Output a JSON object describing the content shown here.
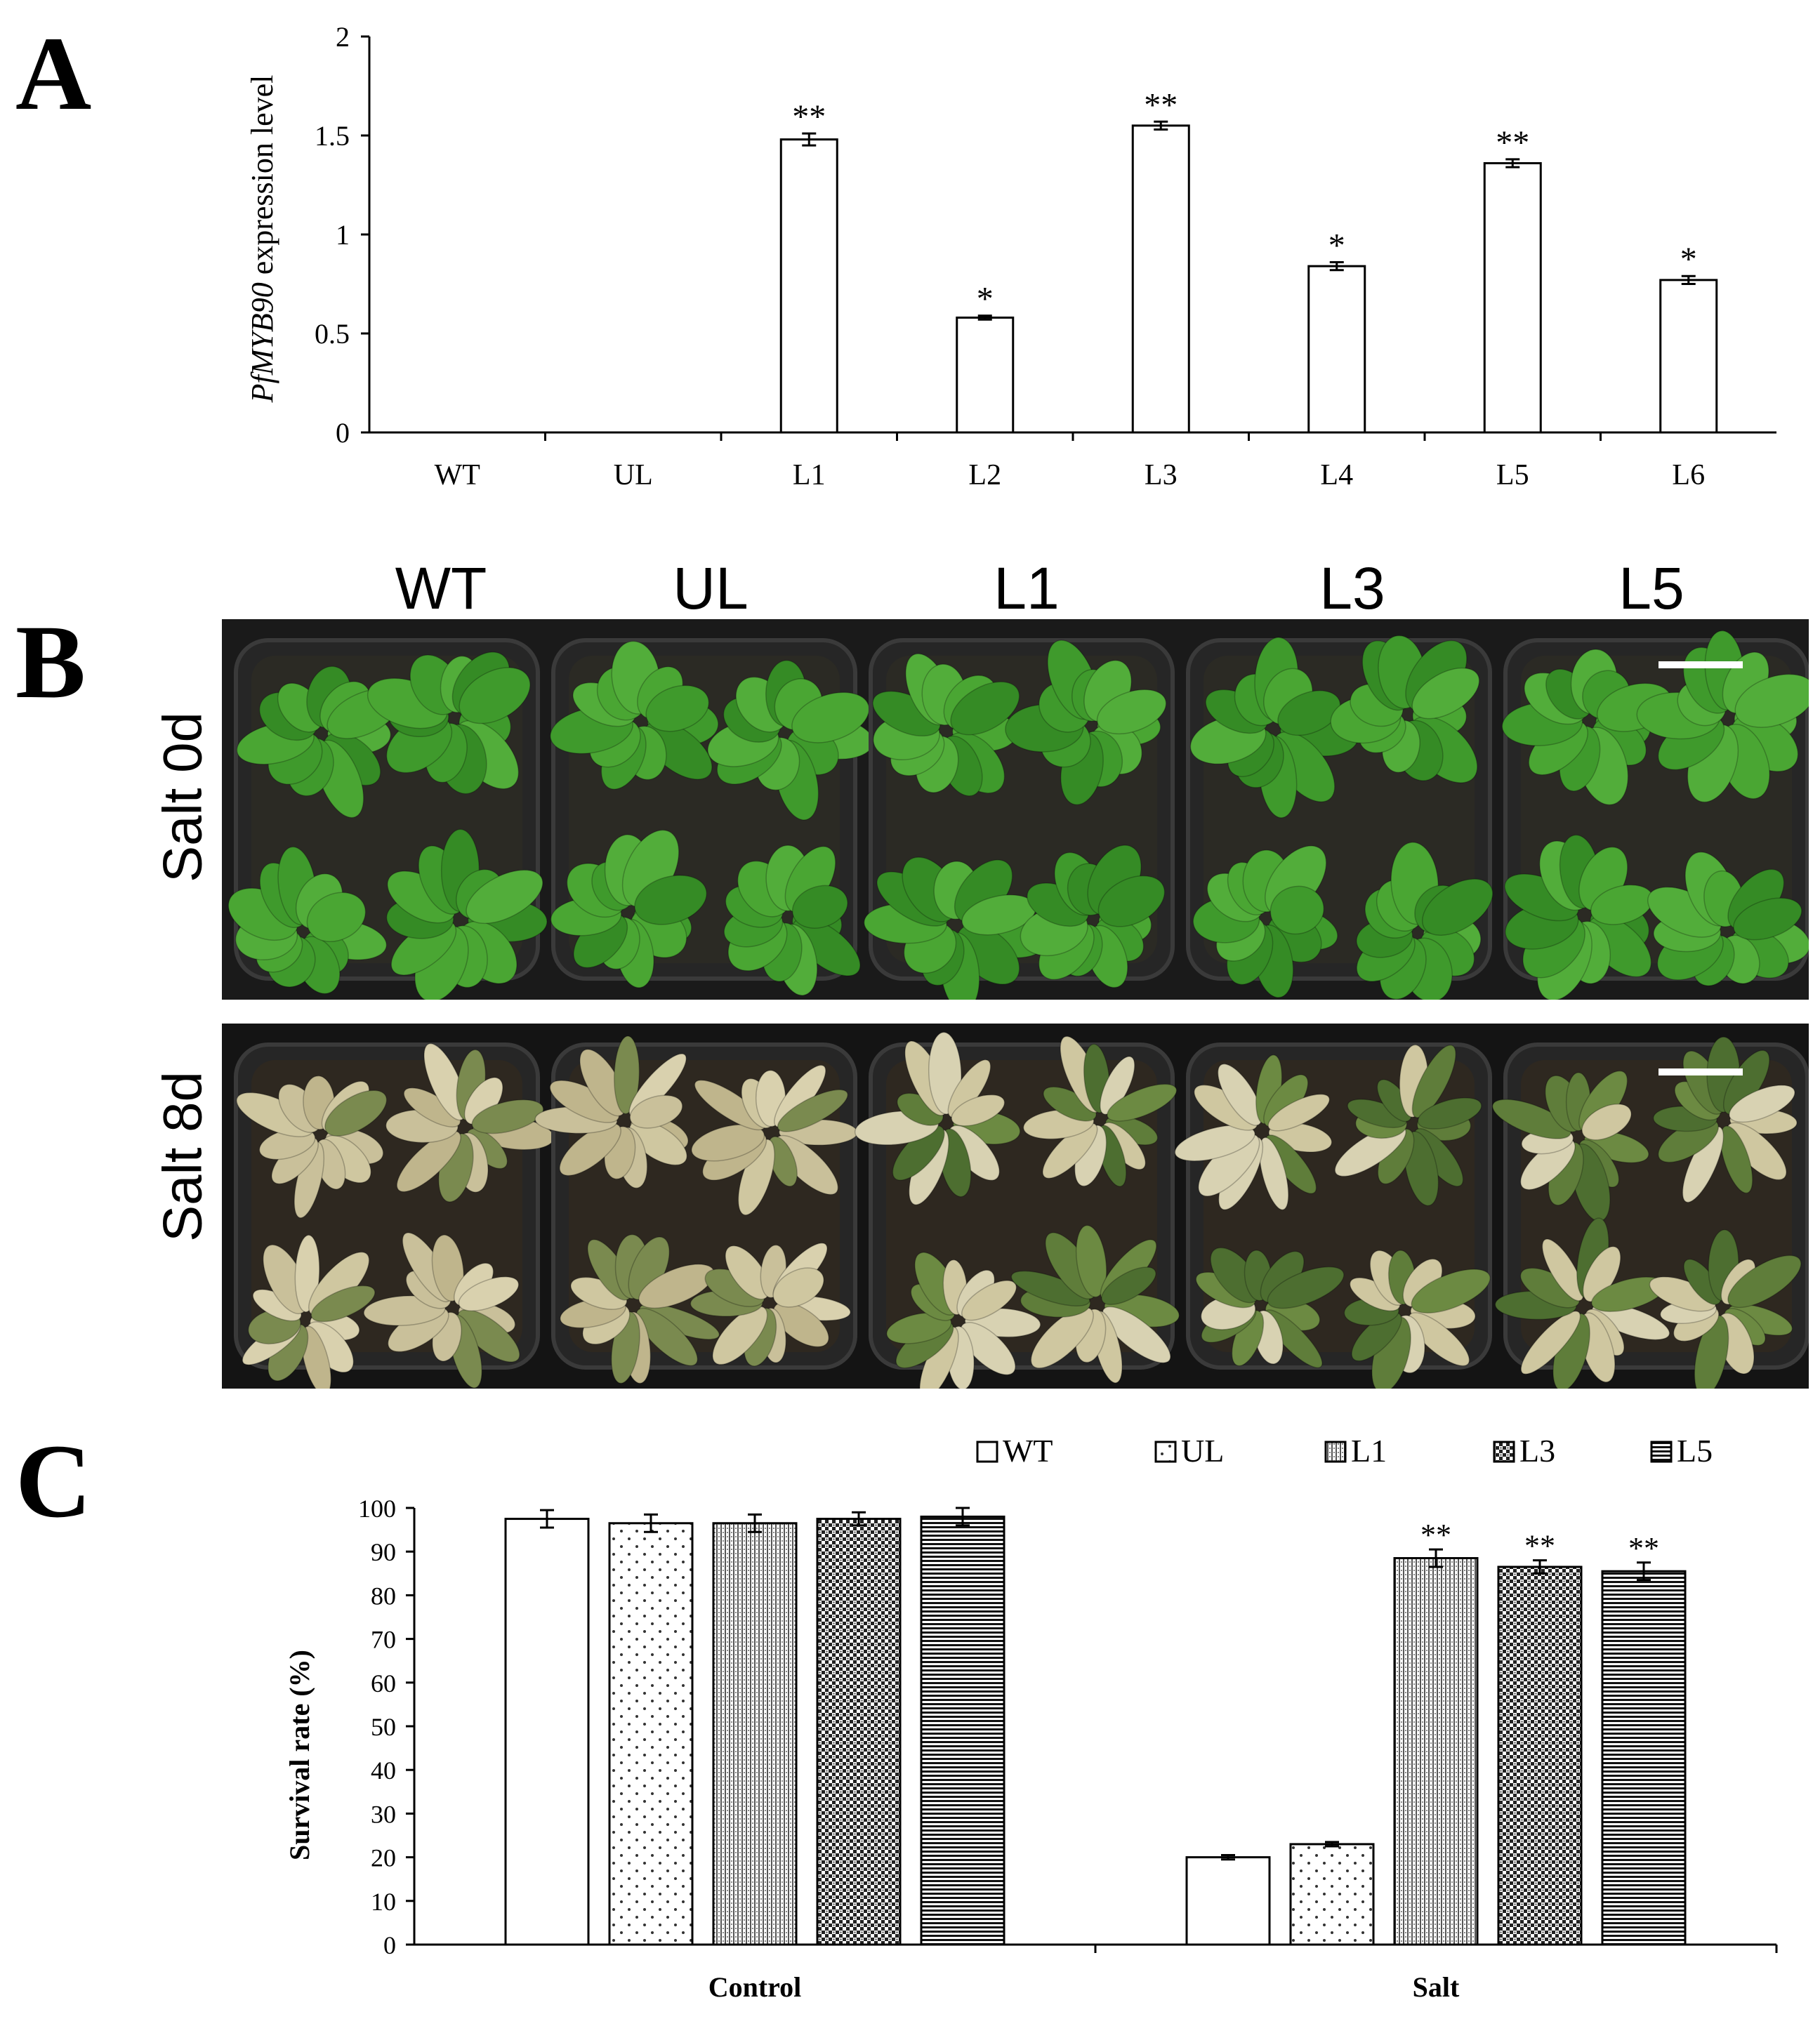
{
  "panels": {
    "a": "A",
    "b": "B",
    "c": "C"
  },
  "chart_data": [
    {
      "type": "bar",
      "ylabel_italic": "PfMYB90",
      "ylabel_rest": " expression level",
      "categories": [
        "WT",
        "UL",
        "L1",
        "L2",
        "L3",
        "L4",
        "L5",
        "L6"
      ],
      "values": [
        0,
        0,
        1.48,
        0.58,
        1.55,
        0.84,
        1.36,
        0.77
      ],
      "errors": [
        0,
        0,
        0.03,
        0.01,
        0.02,
        0.02,
        0.02,
        0.02
      ],
      "significance": [
        "",
        "",
        "**",
        "*",
        "**",
        "*",
        "**",
        "*"
      ],
      "ylim": [
        0,
        2
      ],
      "yticks": [
        "0",
        "0.5",
        "1",
        "1.5",
        "2"
      ]
    },
    {
      "type": "bar",
      "ylabel": "Survival rate (%)",
      "groups": [
        "Control",
        "Salt"
      ],
      "series": [
        {
          "name": "WT",
          "values": [
            97.5,
            20
          ],
          "errors": [
            2,
            0.5
          ],
          "significance": [
            "",
            ""
          ]
        },
        {
          "name": "UL",
          "values": [
            96.5,
            23
          ],
          "errors": [
            2,
            0.5
          ],
          "significance": [
            "",
            ""
          ]
        },
        {
          "name": "L1",
          "values": [
            96.5,
            88.5
          ],
          "errors": [
            2,
            2
          ],
          "significance": [
            "",
            "**"
          ]
        },
        {
          "name": "L3",
          "values": [
            97.5,
            86.5
          ],
          "errors": [
            1.5,
            1.5
          ],
          "significance": [
            "",
            "**"
          ]
        },
        {
          "name": "L5",
          "values": [
            98,
            85.5
          ],
          "errors": [
            2,
            2
          ],
          "significance": [
            "",
            "**"
          ]
        }
      ],
      "ylim": [
        0,
        100
      ],
      "yticks": [
        "0",
        "10",
        "20",
        "30",
        "40",
        "50",
        "60",
        "70",
        "80",
        "90",
        "100"
      ],
      "legend_position": "top-right"
    }
  ],
  "photos": {
    "columns": [
      "WT",
      "UL",
      "L1",
      "L3",
      "L5"
    ],
    "rows": [
      "Salt 0d",
      "Salt 8d"
    ]
  },
  "colors": {
    "healthy_leaf": "#3f9a2c",
    "stressed_leaf": "#cfc7a0",
    "background": "#151515"
  }
}
